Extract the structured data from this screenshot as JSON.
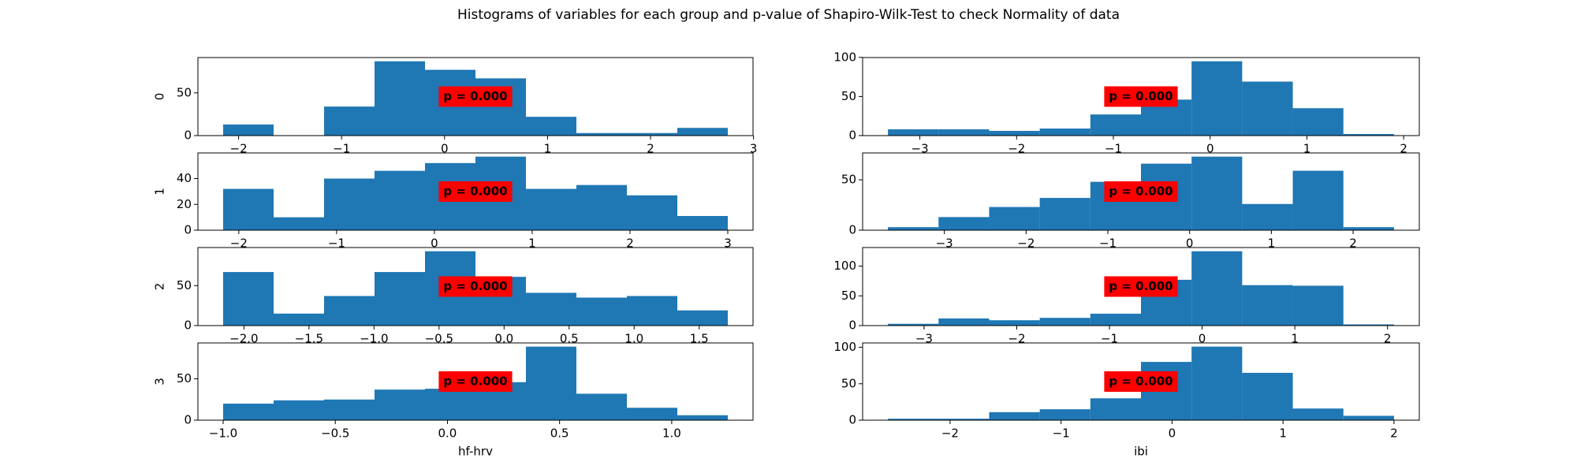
{
  "title": "Histograms of variables for each group and p-value of Shapiro-Wilk-Test to check Normality of data",
  "chart_data": [
    {
      "type": "histogram",
      "color": "#1f77b4",
      "ylabel": "0",
      "annotation": "p = 0.000",
      "annotation_color": "#ff0000",
      "bins": [
        -2.15,
        -1.66,
        -1.17,
        -0.68,
        -0.19,
        0.3,
        0.79,
        1.28,
        1.77,
        2.26,
        2.75
      ],
      "counts": [
        13,
        0,
        34,
        87,
        77,
        67,
        22,
        3,
        3,
        9
      ],
      "xlim": [
        -2.395,
        2.995
      ],
      "xticks": [
        {
          "value": -2,
          "label": "−2"
        },
        {
          "value": -1,
          "label": "−1"
        },
        0,
        1,
        2,
        3
      ],
      "ylim": [
        0,
        91.35
      ],
      "yticks": [
        0,
        50
      ]
    },
    {
      "type": "histogram",
      "color": "#1f77b4",
      "ylabel": "1",
      "annotation": "p = 0.000",
      "annotation_color": "#ff0000",
      "bins": [
        -2.16,
        -1.644,
        -1.128,
        -0.612,
        -0.096,
        0.42,
        0.936,
        1.452,
        1.968,
        2.484,
        3.0
      ],
      "counts": [
        32,
        10,
        40,
        46,
        52,
        57,
        32,
        35,
        27,
        11
      ],
      "xlim": [
        -2.418,
        3.258
      ],
      "xticks": [
        {
          "value": -2,
          "label": "−2"
        },
        {
          "value": -1,
          "label": "−1"
        },
        0,
        1,
        2,
        3
      ],
      "ylim": [
        0,
        59.85
      ],
      "yticks": [
        0,
        20,
        40
      ]
    },
    {
      "type": "histogram",
      "color": "#1f77b4",
      "ylabel": "2",
      "annotation": "p = 0.000",
      "annotation_color": "#ff0000",
      "bins": [
        -2.16,
        -1.772,
        -1.384,
        -0.996,
        -0.608,
        -0.22,
        0.168,
        0.556,
        0.944,
        1.332,
        1.72
      ],
      "counts": [
        67,
        15,
        37,
        67,
        93,
        61,
        41,
        35,
        37,
        19
      ],
      "xlim": [
        -2.354,
        1.914
      ],
      "xticks": [
        {
          "value": -2,
          "label": "−2.0"
        },
        {
          "value": -1.5,
          "label": "−1.5"
        },
        {
          "value": -1,
          "label": "−1.0"
        },
        {
          "value": -0.5,
          "label": "−0.5"
        },
        {
          "value": 0,
          "label": "0.0"
        },
        0.5,
        {
          "value": 1,
          "label": "1.0"
        },
        1.5
      ],
      "ylim": [
        0,
        97.65
      ],
      "yticks": [
        0,
        50
      ]
    },
    {
      "type": "histogram",
      "color": "#1f77b4",
      "ylabel": "3",
      "xlabel": "hf-hrv",
      "annotation": "p = 0.000",
      "annotation_color": "#ff0000",
      "bins": [
        -1.0,
        -0.775,
        -0.55,
        -0.325,
        -0.1,
        0.125,
        0.35,
        0.575,
        0.8,
        1.025,
        1.25
      ],
      "counts": [
        20,
        24,
        25,
        37,
        38,
        46,
        89,
        32,
        15,
        6
      ],
      "xlim": [
        -1.1125,
        1.3625
      ],
      "xticks": [
        {
          "value": -1,
          "label": "−1.0"
        },
        {
          "value": -0.5,
          "label": "−0.5"
        },
        {
          "value": 0,
          "label": "0.0"
        },
        0.5,
        {
          "value": 1,
          "label": "1.0"
        }
      ],
      "ylim": [
        0,
        93.45
      ],
      "yticks": [
        0,
        50
      ]
    },
    {
      "type": "histogram",
      "color": "#1f77b4",
      "annotation": "p = 0.000",
      "annotation_color": "#ff0000",
      "bins": [
        -3.33,
        -2.807,
        -2.284,
        -1.761,
        -1.238,
        -0.715,
        -0.192,
        0.331,
        0.854,
        1.377,
        1.9
      ],
      "counts": [
        8,
        8,
        6,
        9,
        27,
        46,
        95,
        69,
        35,
        2
      ],
      "xlim": [
        -3.5915,
        2.1615
      ],
      "xticks": [
        {
          "value": -3,
          "label": "−3"
        },
        {
          "value": -2,
          "label": "−2"
        },
        {
          "value": -1,
          "label": "−1"
        },
        0,
        1,
        2
      ],
      "ylim": [
        0,
        99.75
      ],
      "yticks": [
        0,
        50,
        100
      ]
    },
    {
      "type": "histogram",
      "color": "#1f77b4",
      "annotation": "p = 0.000",
      "annotation_color": "#ff0000",
      "bins": [
        -3.69,
        -3.071,
        -2.452,
        -1.833,
        -1.214,
        -0.595,
        0.024,
        0.643,
        1.262,
        1.881,
        2.5
      ],
      "counts": [
        3,
        13,
        23,
        32,
        48,
        66,
        73,
        26,
        59,
        3
      ],
      "xlim": [
        -3.9995,
        2.8095
      ],
      "xticks": [
        {
          "value": -3,
          "label": "−3"
        },
        {
          "value": -2,
          "label": "−2"
        },
        {
          "value": -1,
          "label": "−1"
        },
        0,
        1,
        2
      ],
      "ylim": [
        0,
        76.65
      ],
      "yticks": [
        0,
        50
      ]
    },
    {
      "type": "histogram",
      "color": "#1f77b4",
      "annotation": "p = 0.000",
      "annotation_color": "#ff0000",
      "bins": [
        -3.39,
        -2.844,
        -2.298,
        -1.752,
        -1.206,
        -0.66,
        -0.114,
        0.432,
        0.978,
        1.524,
        2.07
      ],
      "counts": [
        3,
        12,
        9,
        13,
        20,
        77,
        125,
        68,
        67,
        2
      ],
      "xlim": [
        -3.663,
        2.343
      ],
      "xticks": [
        {
          "value": -3,
          "label": "−3"
        },
        {
          "value": -2,
          "label": "−2"
        },
        {
          "value": -1,
          "label": "−1"
        },
        0,
        1,
        2
      ],
      "ylim": [
        0,
        131.25
      ],
      "yticks": [
        0,
        50,
        100
      ]
    },
    {
      "type": "histogram",
      "color": "#1f77b4",
      "xlabel": "ibi",
      "annotation": "p = 0.000",
      "annotation_color": "#ff0000",
      "bins": [
        -2.56,
        -2.104,
        -1.648,
        -1.192,
        -0.736,
        -0.28,
        0.176,
        0.632,
        1.088,
        1.544,
        2.0
      ],
      "counts": [
        2,
        2,
        11,
        15,
        30,
        80,
        101,
        65,
        16,
        6
      ],
      "xlim": [
        -2.788,
        2.228
      ],
      "xticks": [
        {
          "value": -2,
          "label": "−2"
        },
        {
          "value": -1,
          "label": "−1"
        },
        0,
        1,
        2
      ],
      "ylim": [
        0,
        106.05
      ],
      "yticks": [
        0,
        50,
        100
      ]
    }
  ]
}
